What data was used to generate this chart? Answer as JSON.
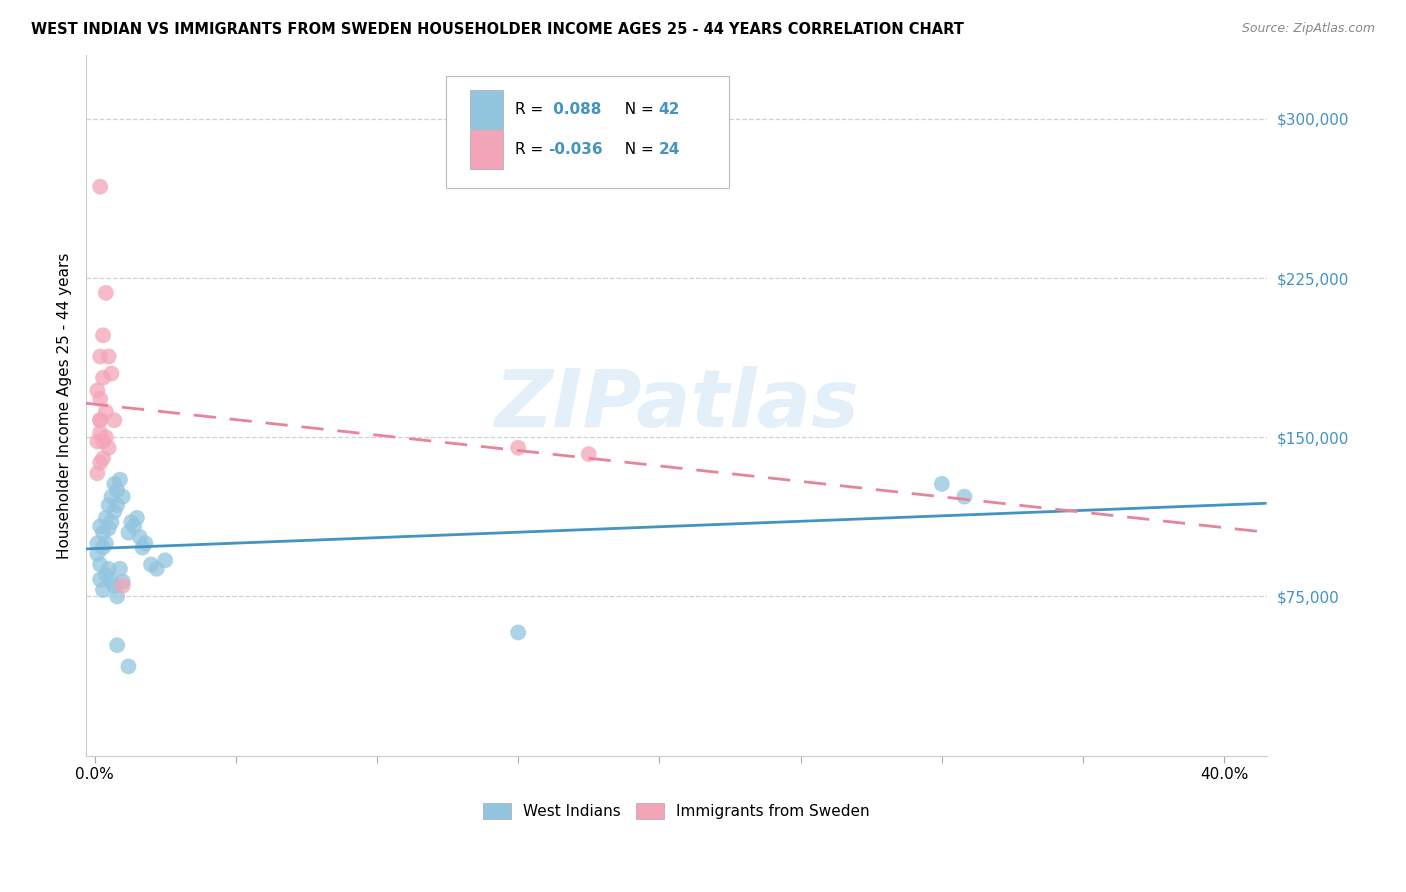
{
  "title": "WEST INDIAN VS IMMIGRANTS FROM SWEDEN HOUSEHOLDER INCOME AGES 25 - 44 YEARS CORRELATION CHART",
  "source": "Source: ZipAtlas.com",
  "ylabel": "Householder Income Ages 25 - 44 years",
  "xlabel_ticks": [
    "0.0%",
    "",
    "",
    "",
    "",
    "",
    "",
    "",
    "40.0%"
  ],
  "xlabel_vals": [
    0.0,
    0.05,
    0.1,
    0.15,
    0.2,
    0.25,
    0.3,
    0.35,
    0.4
  ],
  "ytick_labels": [
    "$75,000",
    "$150,000",
    "$225,000",
    "$300,000"
  ],
  "ytick_vals": [
    75000,
    150000,
    225000,
    300000
  ],
  "ylim": [
    0,
    330000
  ],
  "xlim": [
    -0.003,
    0.415
  ],
  "legend_r_blue": "0.088",
  "legend_n_blue": "42",
  "legend_r_pink": "-0.036",
  "legend_n_pink": "24",
  "legend_label_blue": "West Indians",
  "legend_label_pink": "Immigrants from Sweden",
  "watermark": "ZIPatlas",
  "blue_color": "#92c5de",
  "pink_color": "#f4a4b8",
  "line_blue": "#4393c3",
  "line_pink": "#e8849a",
  "blue_scatter": [
    [
      0.001,
      100000
    ],
    [
      0.002,
      108000
    ],
    [
      0.001,
      95000
    ],
    [
      0.002,
      90000
    ],
    [
      0.003,
      105000
    ],
    [
      0.003,
      98000
    ],
    [
      0.004,
      112000
    ],
    [
      0.004,
      100000
    ],
    [
      0.005,
      118000
    ],
    [
      0.005,
      107000
    ],
    [
      0.006,
      122000
    ],
    [
      0.006,
      110000
    ],
    [
      0.007,
      128000
    ],
    [
      0.007,
      115000
    ],
    [
      0.008,
      125000
    ],
    [
      0.008,
      118000
    ],
    [
      0.009,
      130000
    ],
    [
      0.01,
      122000
    ],
    [
      0.002,
      83000
    ],
    [
      0.003,
      78000
    ],
    [
      0.004,
      85000
    ],
    [
      0.005,
      88000
    ],
    [
      0.006,
      82000
    ],
    [
      0.007,
      80000
    ],
    [
      0.008,
      75000
    ],
    [
      0.009,
      88000
    ],
    [
      0.01,
      82000
    ],
    [
      0.012,
      105000
    ],
    [
      0.013,
      110000
    ],
    [
      0.014,
      108000
    ],
    [
      0.015,
      112000
    ],
    [
      0.016,
      103000
    ],
    [
      0.017,
      98000
    ],
    [
      0.018,
      100000
    ],
    [
      0.02,
      90000
    ],
    [
      0.022,
      88000
    ],
    [
      0.025,
      92000
    ],
    [
      0.3,
      128000
    ],
    [
      0.308,
      122000
    ],
    [
      0.008,
      52000
    ],
    [
      0.012,
      42000
    ],
    [
      0.15,
      58000
    ]
  ],
  "pink_scatter": [
    [
      0.002,
      158000
    ],
    [
      0.002,
      152000
    ],
    [
      0.003,
      148000
    ],
    [
      0.002,
      168000
    ],
    [
      0.001,
      172000
    ],
    [
      0.004,
      162000
    ],
    [
      0.003,
      178000
    ],
    [
      0.001,
      148000
    ],
    [
      0.002,
      158000
    ],
    [
      0.004,
      150000
    ],
    [
      0.005,
      145000
    ],
    [
      0.003,
      140000
    ],
    [
      0.002,
      138000
    ],
    [
      0.001,
      133000
    ],
    [
      0.002,
      188000
    ],
    [
      0.003,
      198000
    ],
    [
      0.004,
      218000
    ],
    [
      0.005,
      188000
    ],
    [
      0.006,
      180000
    ],
    [
      0.002,
      268000
    ],
    [
      0.007,
      158000
    ],
    [
      0.15,
      145000
    ],
    [
      0.175,
      142000
    ],
    [
      0.01,
      80000
    ]
  ]
}
